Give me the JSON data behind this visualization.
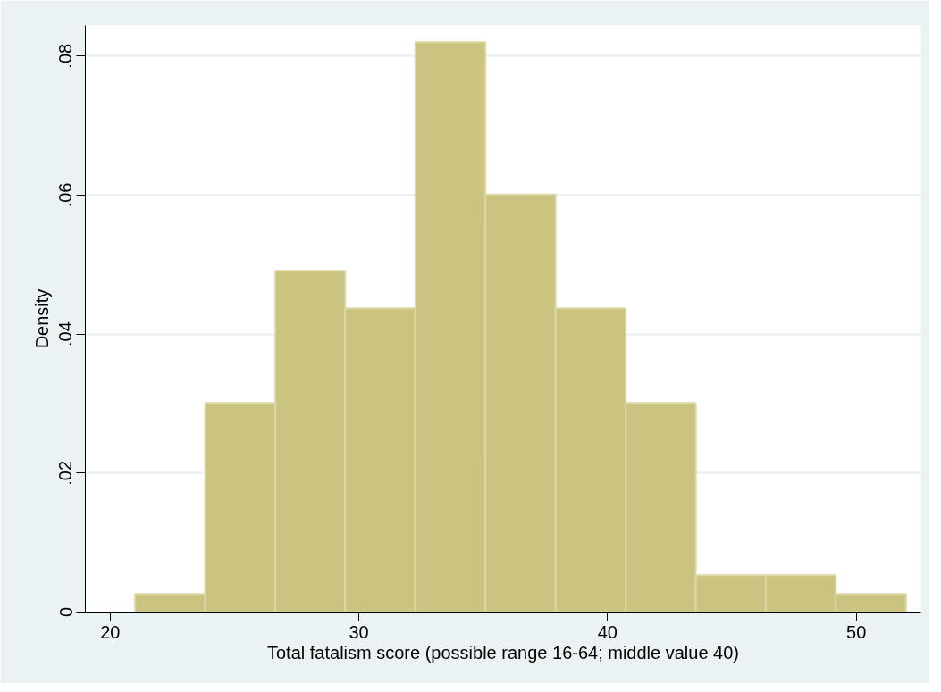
{
  "chart_data": {
    "type": "histogram",
    "xlabel": "Total fatalism score (possible range 16-64; middle value 40)",
    "ylabel": "Density",
    "bins": [
      21,
      23.82,
      26.64,
      29.45,
      32.27,
      35.09,
      37.91,
      40.73,
      43.55,
      46.36,
      49.18,
      52
    ],
    "values": [
      0.0026,
      0.0301,
      0.0491,
      0.0437,
      0.082,
      0.0601,
      0.0437,
      0.0301,
      0.0053,
      0.0053,
      0.0026
    ],
    "color": "#cbc380",
    "xlim": [
      19,
      52.6
    ],
    "xticks": [
      20,
      30,
      40,
      50
    ],
    "ylim": [
      0,
      0.0844
    ],
    "yticks": [
      0,
      {
        "value": 0.02,
        "label": ".02"
      },
      {
        "value": 0.04,
        "label": ".04"
      },
      {
        "value": 0.06,
        "label": ".06"
      },
      {
        "value": 0.08,
        "label": ".08"
      }
    ],
    "grid": "y"
  }
}
